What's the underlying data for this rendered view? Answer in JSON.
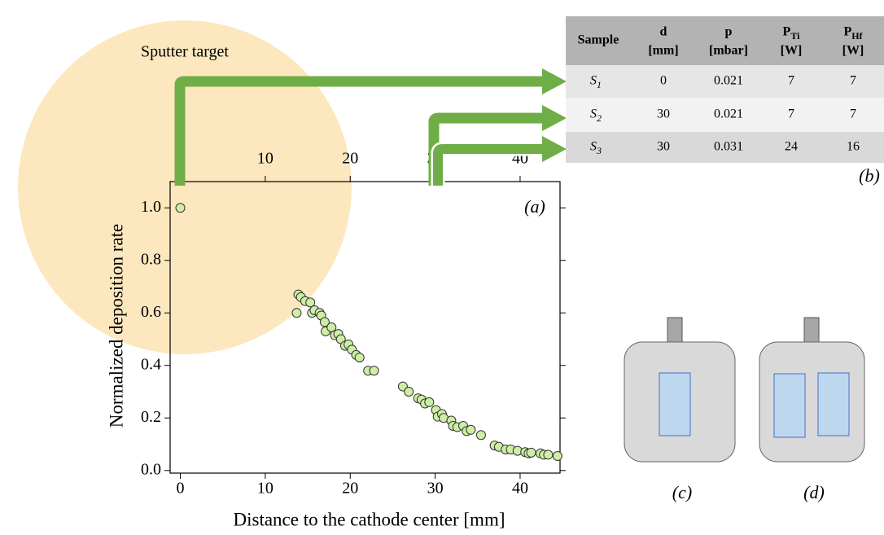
{
  "chart_data": {
    "type": "scatter",
    "x": [
      0,
      13.7,
      13.9,
      14.2,
      14.7,
      15.3,
      15.5,
      15.8,
      16.4,
      16.6,
      17,
      17.1,
      17.8,
      18.2,
      18.6,
      18.9,
      19.4,
      19.8,
      20.2,
      20.7,
      21.1,
      22.1,
      22.8,
      26.2,
      26.9,
      28,
      28.4,
      28.8,
      29.3,
      30.1,
      30.3,
      30.8,
      31,
      31.9,
      32.1,
      32.6,
      33.3,
      33.7,
      34.2,
      35.4,
      37,
      37.5,
      38.3,
      38.9,
      39.7,
      40.6,
      41,
      41.3,
      42.4,
      42.8,
      43.3,
      44.4
    ],
    "y": [
      1.0,
      0.6,
      0.67,
      0.66,
      0.645,
      0.64,
      0.6,
      0.61,
      0.6,
      0.59,
      0.565,
      0.53,
      0.545,
      0.515,
      0.52,
      0.5,
      0.475,
      0.48,
      0.46,
      0.44,
      0.43,
      0.38,
      0.38,
      0.32,
      0.3,
      0.275,
      0.27,
      0.255,
      0.26,
      0.23,
      0.205,
      0.215,
      0.2,
      0.19,
      0.17,
      0.165,
      0.17,
      0.15,
      0.155,
      0.135,
      0.095,
      0.09,
      0.08,
      0.08,
      0.075,
      0.07,
      0.065,
      0.068,
      0.065,
      0.06,
      0.06,
      0.055
    ],
    "color": "#cdeea5",
    "xlim": [
      -1.2,
      44.7
    ],
    "ylim": [
      -0.01,
      1.1
    ],
    "xticks": [
      0,
      10,
      20,
      30,
      40
    ],
    "yticks": [
      {
        "value": 0,
        "label": "0.0"
      },
      0.2,
      0.4,
      0.6,
      0.8,
      {
        "value": 1,
        "label": "1.0"
      }
    ],
    "xlabel": "Distance to the cathode center  [mm]",
    "ylabel": "Normalized deposition rate",
    "panel_label": "(a)"
  },
  "target_label": "Sputter target",
  "table": {
    "header": [
      {
        "name": "Sample"
      },
      {
        "name": "d",
        "unit": "[mm]"
      },
      {
        "name": "p",
        "unit": "[mbar]"
      },
      {
        "name": "P",
        "sub": "Ti",
        "unit": "[W]"
      },
      {
        "name": "P",
        "sub": "Hf",
        "unit": "[W]"
      }
    ],
    "rows": [
      {
        "sample": {
          "name": "S",
          "sub": "1"
        },
        "values": [
          0,
          0.021,
          7,
          7
        ]
      },
      {
        "sample": {
          "name": "S",
          "sub": "2"
        },
        "values": [
          30,
          0.021,
          7,
          7
        ]
      },
      {
        "sample": {
          "name": "S",
          "sub": "3"
        },
        "values": [
          30,
          0.031,
          24,
          16
        ]
      }
    ],
    "panel_label": "(b)"
  },
  "diagrams": {
    "c": "(c)",
    "d": "(d)"
  }
}
